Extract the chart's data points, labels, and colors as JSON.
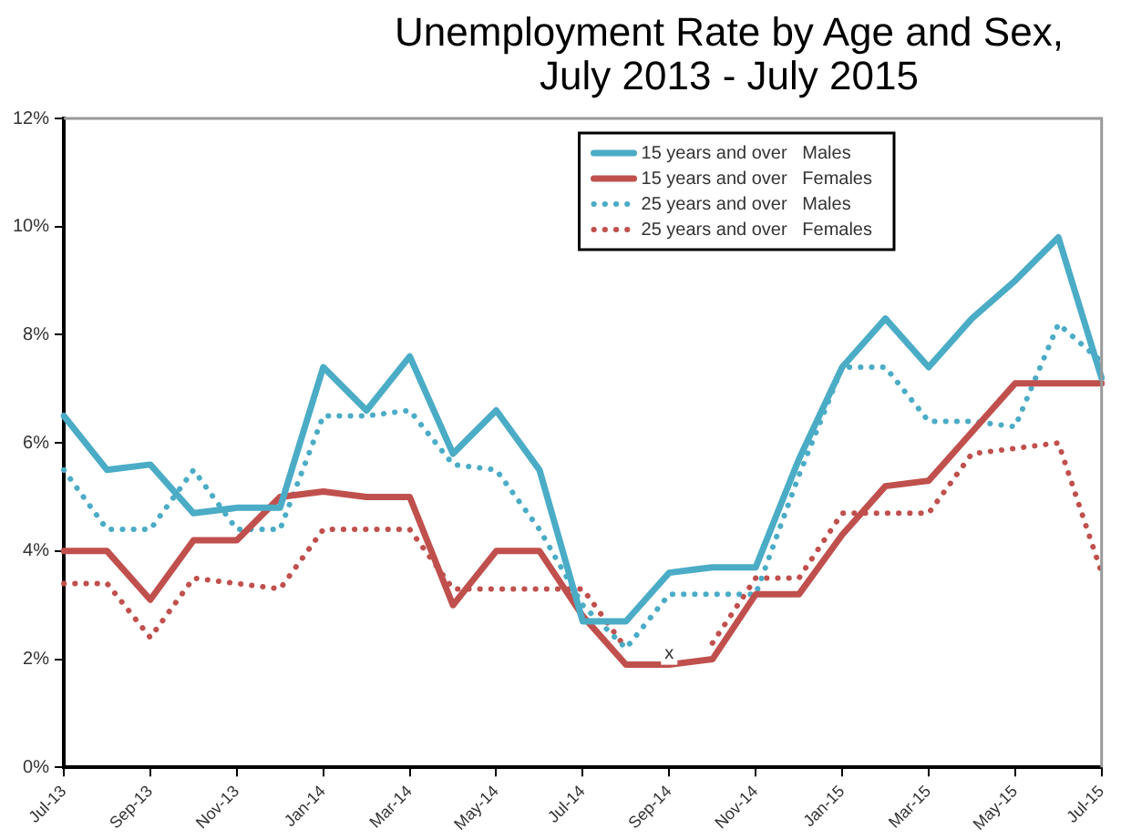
{
  "chart_data": {
    "type": "line",
    "title": "Unemployment Rate by Age and Sex, July 2013 - July 2015",
    "categories": [
      "Jul-13",
      null,
      "Sep-13",
      null,
      "Nov-13",
      null,
      "Jan-14",
      null,
      "Mar-14",
      null,
      "May-14",
      null,
      "Jul-14",
      null,
      "Sep-14",
      null,
      "Nov-14",
      null,
      "Jan-15",
      null,
      "Mar-15",
      null,
      "May-15",
      null,
      "Jul-15"
    ],
    "series": [
      {
        "name": "15 years and over   Males",
        "color": "#4bacc6",
        "line_style": "solid",
        "values": [
          6.5,
          5.5,
          5.6,
          4.7,
          4.8,
          4.8,
          7.4,
          6.6,
          7.6,
          5.8,
          6.6,
          5.5,
          2.7,
          2.7,
          3.6,
          3.7,
          3.7,
          5.7,
          7.4,
          8.3,
          7.4,
          8.3,
          9.0,
          9.8,
          7.2
        ]
      },
      {
        "name": "15 years and over   Females",
        "color": "#c0504d",
        "line_style": "solid",
        "values": [
          4.0,
          4.0,
          3.1,
          4.2,
          4.2,
          5.0,
          5.1,
          5.0,
          5.0,
          3.0,
          4.0,
          4.0,
          2.8,
          1.9,
          1.9,
          2.0,
          3.2,
          3.2,
          4.3,
          5.2,
          5.3,
          6.2,
          7.1,
          7.1,
          7.1
        ]
      },
      {
        "name": "25 years and over   Males",
        "color": "#4bacc6",
        "line_style": "dotted",
        "values": [
          5.5,
          4.4,
          4.4,
          5.5,
          4.4,
          4.4,
          6.5,
          6.5,
          6.6,
          5.6,
          5.5,
          4.4,
          3.0,
          2.2,
          3.2,
          3.2,
          3.2,
          5.4,
          7.4,
          7.4,
          6.4,
          6.4,
          6.3,
          8.2,
          7.5
        ]
      },
      {
        "name": "25 years and over   Females",
        "color": "#c0504d",
        "line_style": "dotted",
        "values": [
          3.4,
          3.4,
          2.4,
          3.5,
          3.4,
          3.3,
          4.4,
          4.4,
          4.4,
          3.3,
          3.3,
          3.3,
          3.3,
          2.2,
          null,
          2.3,
          3.5,
          3.5,
          4.7,
          4.7,
          4.7,
          5.8,
          5.9,
          6.0,
          3.6
        ]
      }
    ],
    "ylim": [
      0,
      12
    ],
    "yticks": [
      {
        "value": 0,
        "label": "0%"
      },
      {
        "value": 2,
        "label": "2%"
      },
      {
        "value": 4,
        "label": "4%"
      },
      {
        "value": 6,
        "label": "6%"
      },
      {
        "value": 8,
        "label": "8%"
      },
      {
        "value": 10,
        "label": "10%"
      },
      {
        "value": 12,
        "label": "12%"
      }
    ],
    "annotations": [
      {
        "text": "x",
        "x": "Sep-14",
        "y": 2.1
      }
    ],
    "legend": "top right",
    "grid": false,
    "marker": "none"
  }
}
